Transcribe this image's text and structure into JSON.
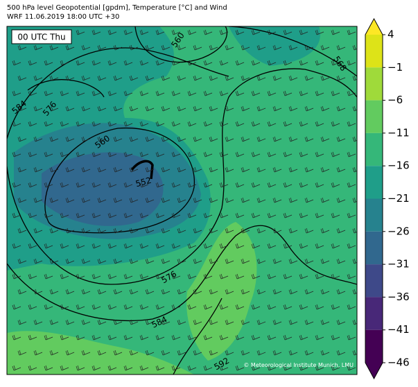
{
  "header": {
    "title": "500 hPa level Geopotential [gpdm], Temperature [°C] and Wind",
    "subtitle": "WRF 11.06.2019 18:00 UTC +30"
  },
  "map": {
    "time_label": "00 UTC Thu",
    "contour_labels": [
      "560",
      "568",
      "584",
      "576",
      "560",
      "552",
      "576",
      "584",
      "592"
    ],
    "credit": "© Meteorological Institute Munich, LMU"
  },
  "colorbar": {
    "ticks": [
      {
        "value": 4,
        "label": "4"
      },
      {
        "value": -1,
        "label": "−1"
      },
      {
        "value": -6,
        "label": "−6"
      },
      {
        "value": -11,
        "label": "−11"
      },
      {
        "value": -16,
        "label": "−16"
      },
      {
        "value": -21,
        "label": "−21"
      },
      {
        "value": -26,
        "label": "−26"
      },
      {
        "value": -31,
        "label": "−31"
      },
      {
        "value": -36,
        "label": "−36"
      },
      {
        "value": -41,
        "label": "−41"
      },
      {
        "value": -46,
        "label": "−46"
      }
    ],
    "colors": [
      "#dde318",
      "#9fda3a",
      "#62cb5f",
      "#35b779",
      "#1f9e89",
      "#26828e",
      "#31688e",
      "#3e4989",
      "#482878",
      "#440154"
    ],
    "over_color": "#fde725",
    "under_color": "#440154"
  }
}
